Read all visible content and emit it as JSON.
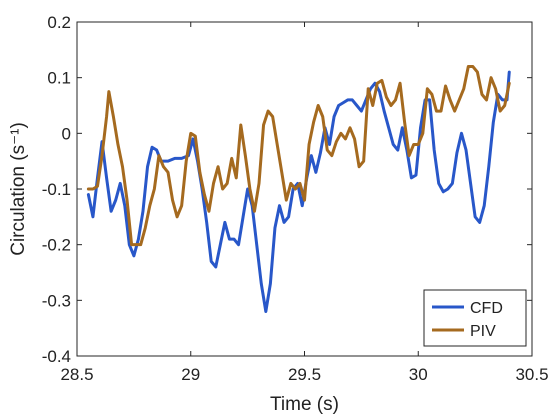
{
  "chart_data": {
    "type": "line",
    "xlabel": "Time (s)",
    "ylabel": "Circulation (s⁻¹)",
    "xlim": [
      28.5,
      30.5
    ],
    "ylim": [
      -0.4,
      0.2
    ],
    "xticks": [
      28.5,
      29,
      29.5,
      30,
      30.5
    ],
    "xtick_labels": [
      "28.5",
      "29",
      "29.5",
      "30",
      "30.5"
    ],
    "yticks": [
      -0.4,
      -0.3,
      -0.2,
      -0.1,
      0,
      0.1,
      0.2
    ],
    "ytick_labels": [
      "-0.4",
      "-0.3",
      "-0.2",
      "-0.1",
      "0",
      "0.1",
      "0.2"
    ],
    "grid": false,
    "legend_position": "bottom-right",
    "series": [
      {
        "name": "CFD",
        "color": "#2857c9",
        "points": [
          [
            28.55,
            -0.11
          ],
          [
            28.57,
            -0.15
          ],
          [
            28.59,
            -0.08
          ],
          [
            28.61,
            -0.015
          ],
          [
            28.63,
            -0.08
          ],
          [
            28.65,
            -0.14
          ],
          [
            28.67,
            -0.12
          ],
          [
            28.69,
            -0.09
          ],
          [
            28.71,
            -0.13
          ],
          [
            28.73,
            -0.2
          ],
          [
            28.75,
            -0.22
          ],
          [
            28.77,
            -0.19
          ],
          [
            28.79,
            -0.14
          ],
          [
            28.81,
            -0.06
          ],
          [
            28.83,
            -0.025
          ],
          [
            28.85,
            -0.03
          ],
          [
            28.87,
            -0.05
          ],
          [
            28.9,
            -0.05
          ],
          [
            28.93,
            -0.045
          ],
          [
            28.96,
            -0.045
          ],
          [
            28.99,
            -0.04
          ],
          [
            29.01,
            -0.01
          ],
          [
            29.03,
            -0.05
          ],
          [
            29.05,
            -0.1
          ],
          [
            29.07,
            -0.16
          ],
          [
            29.09,
            -0.23
          ],
          [
            29.11,
            -0.24
          ],
          [
            29.13,
            -0.2
          ],
          [
            29.15,
            -0.16
          ],
          [
            29.17,
            -0.19
          ],
          [
            29.19,
            -0.19
          ],
          [
            29.21,
            -0.2
          ],
          [
            29.23,
            -0.15
          ],
          [
            29.25,
            -0.1
          ],
          [
            29.27,
            -0.13
          ],
          [
            29.29,
            -0.2
          ],
          [
            29.31,
            -0.27
          ],
          [
            29.33,
            -0.32
          ],
          [
            29.35,
            -0.27
          ],
          [
            29.37,
            -0.17
          ],
          [
            29.39,
            -0.13
          ],
          [
            29.41,
            -0.16
          ],
          [
            29.43,
            -0.15
          ],
          [
            29.45,
            -0.1
          ],
          [
            29.47,
            -0.09
          ],
          [
            29.49,
            -0.13
          ],
          [
            29.51,
            -0.08
          ],
          [
            29.53,
            -0.04
          ],
          [
            29.55,
            -0.07
          ],
          [
            29.57,
            -0.035
          ],
          [
            29.59,
            0.01
          ],
          [
            29.61,
            -0.02
          ],
          [
            29.63,
            0.03
          ],
          [
            29.65,
            0.05
          ],
          [
            29.67,
            0.055
          ],
          [
            29.69,
            0.06
          ],
          [
            29.71,
            0.06
          ],
          [
            29.73,
            0.05
          ],
          [
            29.75,
            0.04
          ],
          [
            29.77,
            0.06
          ],
          [
            29.79,
            0.08
          ],
          [
            29.81,
            0.09
          ],
          [
            29.83,
            0.075
          ],
          [
            29.85,
            0.04
          ],
          [
            29.87,
            0.01
          ],
          [
            29.89,
            -0.02
          ],
          [
            29.91,
            -0.03
          ],
          [
            29.93,
            0.01
          ],
          [
            29.95,
            -0.03
          ],
          [
            29.97,
            -0.08
          ],
          [
            29.99,
            -0.075
          ],
          [
            30.01,
            0.01
          ],
          [
            30.03,
            0.06
          ],
          [
            30.05,
            0.06
          ],
          [
            30.07,
            -0.03
          ],
          [
            30.09,
            -0.09
          ],
          [
            30.11,
            -0.105
          ],
          [
            30.13,
            -0.1
          ],
          [
            30.15,
            -0.09
          ],
          [
            30.17,
            -0.035
          ],
          [
            30.19,
            0.0
          ],
          [
            30.21,
            -0.03
          ],
          [
            30.23,
            -0.09
          ],
          [
            30.25,
            -0.15
          ],
          [
            30.27,
            -0.16
          ],
          [
            30.29,
            -0.13
          ],
          [
            30.31,
            -0.06
          ],
          [
            30.33,
            0.02
          ],
          [
            30.35,
            0.07
          ],
          [
            30.37,
            0.06
          ],
          [
            30.39,
            0.06
          ],
          [
            30.4,
            0.11
          ]
        ]
      },
      {
        "name": "PIV",
        "color": "#a56a1f",
        "points": [
          [
            28.55,
            -0.1
          ],
          [
            28.57,
            -0.1
          ],
          [
            28.59,
            -0.095
          ],
          [
            28.61,
            -0.04
          ],
          [
            28.63,
            0.03
          ],
          [
            28.64,
            0.075
          ],
          [
            28.66,
            0.03
          ],
          [
            28.68,
            -0.02
          ],
          [
            28.7,
            -0.06
          ],
          [
            28.72,
            -0.12
          ],
          [
            28.74,
            -0.2
          ],
          [
            28.76,
            -0.2
          ],
          [
            28.78,
            -0.2
          ],
          [
            28.8,
            -0.17
          ],
          [
            28.82,
            -0.13
          ],
          [
            28.84,
            -0.1
          ],
          [
            28.86,
            -0.04
          ],
          [
            28.88,
            -0.06
          ],
          [
            28.9,
            -0.07
          ],
          [
            28.92,
            -0.12
          ],
          [
            28.94,
            -0.15
          ],
          [
            28.96,
            -0.13
          ],
          [
            28.98,
            -0.05
          ],
          [
            29.0,
            0.0
          ],
          [
            29.02,
            -0.005
          ],
          [
            29.04,
            -0.07
          ],
          [
            29.06,
            -0.11
          ],
          [
            29.08,
            -0.14
          ],
          [
            29.1,
            -0.09
          ],
          [
            29.12,
            -0.06
          ],
          [
            29.14,
            -0.1
          ],
          [
            29.16,
            -0.09
          ],
          [
            29.18,
            -0.045
          ],
          [
            29.2,
            -0.08
          ],
          [
            29.22,
            0.015
          ],
          [
            29.24,
            -0.04
          ],
          [
            29.26,
            -0.1
          ],
          [
            29.28,
            -0.14
          ],
          [
            29.3,
            -0.09
          ],
          [
            29.32,
            0.015
          ],
          [
            29.34,
            0.04
          ],
          [
            29.36,
            0.03
          ],
          [
            29.38,
            -0.02
          ],
          [
            29.4,
            -0.07
          ],
          [
            29.42,
            -0.12
          ],
          [
            29.44,
            -0.09
          ],
          [
            29.46,
            -0.1
          ],
          [
            29.48,
            -0.09
          ],
          [
            29.5,
            -0.12
          ],
          [
            29.52,
            -0.02
          ],
          [
            29.54,
            0.02
          ],
          [
            29.56,
            0.05
          ],
          [
            29.58,
            0.03
          ],
          [
            29.6,
            -0.03
          ],
          [
            29.62,
            -0.04
          ],
          [
            29.64,
            -0.015
          ],
          [
            29.66,
            0.0
          ],
          [
            29.68,
            -0.01
          ],
          [
            29.7,
            0.01
          ],
          [
            29.72,
            -0.01
          ],
          [
            29.74,
            -0.06
          ],
          [
            29.76,
            -0.05
          ],
          [
            29.78,
            0.08
          ],
          [
            29.8,
            0.05
          ],
          [
            29.82,
            0.09
          ],
          [
            29.84,
            0.095
          ],
          [
            29.86,
            0.065
          ],
          [
            29.88,
            0.05
          ],
          [
            29.9,
            0.06
          ],
          [
            29.92,
            0.09
          ],
          [
            29.94,
            0.02
          ],
          [
            29.96,
            -0.04
          ],
          [
            29.98,
            -0.02
          ],
          [
            30.0,
            -0.02
          ],
          [
            30.02,
            0.0
          ],
          [
            30.04,
            0.08
          ],
          [
            30.06,
            0.07
          ],
          [
            30.08,
            0.04
          ],
          [
            30.1,
            0.04
          ],
          [
            30.12,
            0.085
          ],
          [
            30.14,
            0.06
          ],
          [
            30.16,
            0.04
          ],
          [
            30.18,
            0.06
          ],
          [
            30.2,
            0.08
          ],
          [
            30.22,
            0.12
          ],
          [
            30.24,
            0.12
          ],
          [
            30.26,
            0.11
          ],
          [
            30.28,
            0.07
          ],
          [
            30.3,
            0.06
          ],
          [
            30.32,
            0.1
          ],
          [
            30.34,
            0.08
          ],
          [
            30.36,
            0.04
          ],
          [
            30.38,
            0.05
          ],
          [
            30.4,
            0.09
          ]
        ]
      }
    ]
  }
}
